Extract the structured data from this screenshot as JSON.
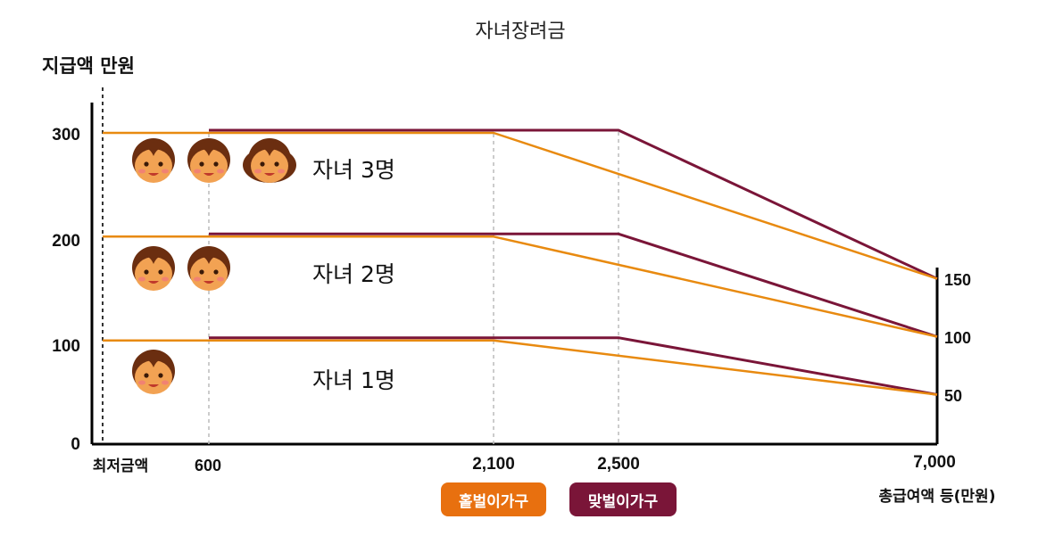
{
  "chart_data": {
    "type": "line",
    "title": "자녀장려금",
    "ylabel": "지급액 만원",
    "xlabel": "총급여액 등(만원)",
    "x_points": [
      "최저금액",
      "600",
      "2,100",
      "2,500",
      "7,000"
    ],
    "y_ticks_left": [
      "0",
      "100",
      "200",
      "300"
    ],
    "y_ticks_right": [
      "150",
      "100",
      "50"
    ],
    "ylim": [
      0,
      300
    ],
    "series": [
      {
        "name": "홑벌이가구",
        "color": "#E88A10",
        "groups": [
          {
            "label": "자녀 3명",
            "points": [
              [
                0,
                300
              ],
              [
                2100,
                300
              ],
              [
                7000,
                150
              ]
            ]
          },
          {
            "label": "자녀 2명",
            "points": [
              [
                0,
                200
              ],
              [
                2100,
                200
              ],
              [
                7000,
                100
              ]
            ]
          },
          {
            "label": "자녀 1명",
            "points": [
              [
                0,
                100
              ],
              [
                2100,
                100
              ],
              [
                7000,
                50
              ]
            ]
          }
        ]
      },
      {
        "name": "맞벌이가구",
        "color": "#7A1538",
        "groups": [
          {
            "label": "자녀 3명",
            "points": [
              [
                600,
                300
              ],
              [
                2500,
                300
              ],
              [
                7000,
                150
              ]
            ]
          },
          {
            "label": "자녀 2명",
            "points": [
              [
                600,
                200
              ],
              [
                2500,
                200
              ],
              [
                7000,
                100
              ]
            ]
          },
          {
            "label": "자녀 1명",
            "points": [
              [
                600,
                100
              ],
              [
                2500,
                100
              ],
              [
                7000,
                50
              ]
            ]
          }
        ]
      }
    ],
    "annotations": [
      {
        "text": "자녀 3명",
        "children": 3
      },
      {
        "text": "자녀 2명",
        "children": 2
      },
      {
        "text": "자녀 1명",
        "children": 1
      }
    ],
    "legend": [
      "홑벌이가구",
      "맞벌이가구"
    ],
    "legend_position": "bottom-center",
    "colors": {
      "single": "#E88A10",
      "dual": "#7A1538",
      "legend_single": "#E8700F",
      "legend_dual": "#7A1538"
    }
  }
}
